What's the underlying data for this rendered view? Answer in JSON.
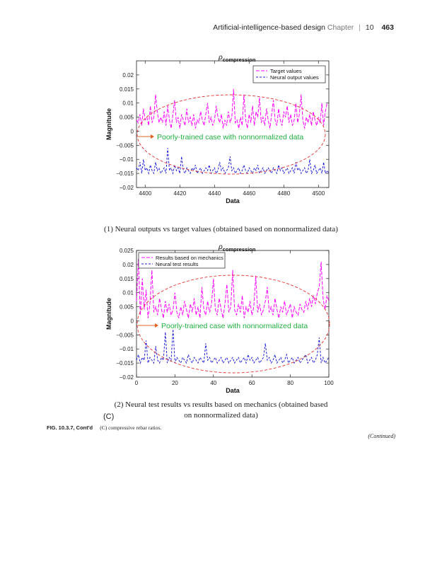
{
  "header": {
    "running_title": "Artificial-intelligence-based design",
    "chapter_label": "Chapter",
    "separator": "|",
    "chapter_number": "10",
    "page_number": "463"
  },
  "colors": {
    "target": "#ff00ff",
    "neural": "#1f1fd6",
    "ellipse": "#e33030",
    "annotation": "#20b040",
    "arrow": "#e36020"
  },
  "chart_data": [
    {
      "type": "line",
      "title_symbol": "ρ",
      "title_subscript": "compression",
      "xlabel": "Data",
      "ylabel": "Magnitude",
      "xlim": [
        4395,
        4506
      ],
      "ylim": [
        -0.02,
        0.025
      ],
      "xticks": [
        4400,
        4420,
        4440,
        4460,
        4480,
        4500
      ],
      "yticks": [
        -0.02,
        -0.015,
        -0.01,
        -0.005,
        0,
        0.005,
        0.01,
        0.015,
        0.02
      ],
      "ytick_labels": [
        "−0.02",
        "−0.015",
        "−0.01",
        "−0.005",
        "0",
        "0.005",
        "0.01",
        "0.015",
        "0.02"
      ],
      "legend": [
        "Target values",
        "Neural output values"
      ],
      "legend_position": "top-right",
      "annotation": "Poorly-trained case with nonnormalized data",
      "series": [
        {
          "name": "Target values",
          "x_start": 4395,
          "x_step": 1,
          "values": [
            0.004,
            0.003,
            0.006,
            0.002,
            0.008,
            0.004,
            0.005,
            0.002,
            0.009,
            0.003,
            0.005,
            0.013,
            0.007,
            0.003,
            0.005,
            0.003,
            0.007,
            0.002,
            0.009,
            0.004,
            0.001,
            0.006,
            0.011,
            0.003,
            0.005,
            0.001,
            0.006,
            0.004,
            0.002,
            0.008,
            0.003,
            0.005,
            0.002,
            0.006,
            0.001,
            0.004,
            0.003,
            0.007,
            0.004,
            0.002,
            0.006,
            0.01,
            0.003,
            0.005,
            0.002,
            0.004,
            0.009,
            0.005,
            0.003,
            0.006,
            0.001,
            0.004,
            0.002,
            0.007,
            0.003,
            0.005,
            0.015,
            0.003,
            0.004,
            0.001,
            0.005,
            0.002,
            0.013,
            0.004,
            0.001,
            0.006,
            0.003,
            0.009,
            0.002,
            0.007,
            0.005,
            0.012,
            0.003,
            0.005,
            0.002,
            0.008,
            0.004,
            0.001,
            0.006,
            0.011,
            0.004,
            0.002,
            0.008,
            0.004,
            0.002,
            0.007,
            0.005,
            0.009,
            0.003,
            0.006,
            0.002,
            0.004,
            0.01,
            0.003,
            0.006,
            0.013,
            0.004,
            0.001,
            0.005,
            0.003,
            0.006,
            0.002,
            0.007,
            0.004,
            0.002,
            0.005,
            0.003,
            0.01,
            0.002,
            0.007,
            0.01
          ]
        },
        {
          "name": "Neural output values",
          "x_start": 4395,
          "x_step": 1,
          "values": [
            -0.013,
            -0.014,
            -0.011,
            -0.015,
            -0.01,
            -0.014,
            -0.013,
            -0.015,
            -0.012,
            -0.014,
            -0.015,
            -0.011,
            -0.014,
            -0.013,
            -0.015,
            -0.014,
            -0.013,
            -0.015,
            -0.006,
            -0.014,
            -0.013,
            -0.015,
            -0.012,
            -0.014,
            -0.013,
            -0.015,
            -0.009,
            -0.014,
            -0.015,
            -0.013,
            -0.014,
            -0.015,
            -0.013,
            -0.014,
            -0.012,
            -0.015,
            -0.014,
            -0.013,
            -0.015,
            -0.014,
            -0.013,
            -0.014,
            -0.012,
            -0.015,
            -0.014,
            -0.013,
            -0.015,
            -0.014,
            -0.011,
            -0.014,
            -0.013,
            -0.015,
            -0.014,
            -0.013,
            -0.009,
            -0.014,
            -0.013,
            -0.015,
            -0.014,
            -0.013,
            -0.015,
            -0.014,
            -0.012,
            -0.014,
            -0.015,
            -0.013,
            -0.014,
            -0.015,
            -0.013,
            -0.014,
            -0.012,
            -0.015,
            -0.014,
            -0.013,
            -0.015,
            -0.014,
            -0.013,
            -0.014,
            -0.015,
            -0.013,
            -0.014,
            -0.015,
            -0.012,
            -0.014,
            -0.013,
            -0.015,
            -0.014,
            -0.013,
            -0.015,
            -0.014,
            -0.013,
            -0.015,
            -0.011,
            -0.014,
            -0.013,
            -0.015,
            -0.014,
            -0.013,
            -0.015,
            -0.014,
            -0.01,
            -0.015,
            -0.014,
            -0.012,
            -0.015,
            -0.014,
            -0.013,
            -0.015,
            -0.011,
            -0.015,
            -0.014,
            -0.015
          ]
        }
      ],
      "caption": "(1) Neural outputs vs target values (obtained based on nonnormalized data)"
    },
    {
      "type": "line",
      "title_symbol": "ρ",
      "title_subscript": "compression",
      "xlabel": "Data",
      "ylabel": "Magnitude",
      "xlim": [
        0,
        100
      ],
      "ylim": [
        -0.02,
        0.025
      ],
      "xticks": [
        0,
        20,
        40,
        60,
        80,
        100
      ],
      "yticks": [
        -0.02,
        -0.015,
        -0.01,
        -0.005,
        0,
        0.005,
        0.01,
        0.015,
        0.02,
        0.025
      ],
      "ytick_labels": [
        "−0.02",
        "−0.015",
        "−0.01",
        "−0.005",
        "0",
        "0.005",
        "0.01",
        "0.015",
        "0.02",
        "0.025"
      ],
      "legend": [
        "Results based on mechanics",
        "Neural test results"
      ],
      "legend_position": "top-left",
      "annotation": "Poorly-trained case with nonnormalized data",
      "series": [
        {
          "name": "Results based on mechanics",
          "x_start": 0,
          "x_step": 1,
          "values": [
            0.007,
            0.022,
            0.002,
            0.015,
            0.004,
            0.011,
            0.001,
            0.006,
            0.018,
            0.003,
            0.005,
            0.002,
            0.008,
            0.004,
            0.001,
            0.007,
            0.003,
            0.006,
            0.002,
            0.004,
            0.01,
            0.003,
            0.001,
            0.005,
            0.002,
            0.007,
            0.004,
            0.001,
            0.006,
            0.003,
            0.008,
            0.002,
            0.005,
            0.001,
            0.012,
            0.004,
            0.002,
            0.007,
            0.003,
            0.006,
            0.015,
            0.004,
            0.002,
            0.008,
            0.004,
            0.001,
            0.006,
            0.013,
            0.003,
            0.005,
            0.018,
            0.004,
            0.002,
            0.006,
            0.003,
            0.009,
            0.001,
            0.005,
            0.003,
            0.007,
            0.002,
            0.005,
            0.016,
            0.003,
            0.006,
            0.002,
            0.004,
            0.007,
            0.012,
            0.003,
            0.005,
            0.002,
            0.008,
            0.004,
            0.001,
            0.005,
            0.003,
            0.007,
            0.002,
            0.004,
            0.006,
            0.001,
            0.005,
            0.003,
            0.002,
            0.006,
            0.004,
            0.003,
            0.007,
            0.004,
            0.008,
            0.005,
            0.009,
            0.006,
            0.01,
            0.012,
            0.021,
            0.008,
            0.004,
            0.009,
            0.007
          ]
        },
        {
          "name": "Neural test results",
          "x_start": 0,
          "x_step": 1,
          "values": [
            -0.014,
            -0.012,
            -0.015,
            -0.013,
            -0.014,
            -0.007,
            -0.015,
            -0.013,
            -0.014,
            -0.015,
            -0.009,
            -0.014,
            -0.015,
            -0.013,
            -0.014,
            -0.004,
            -0.015,
            -0.013,
            -0.014,
            -0.003,
            -0.015,
            -0.013,
            -0.014,
            -0.015,
            -0.013,
            -0.014,
            -0.015,
            -0.012,
            -0.014,
            -0.015,
            -0.013,
            -0.014,
            -0.015,
            -0.013,
            -0.014,
            -0.015,
            -0.008,
            -0.014,
            -0.013,
            -0.015,
            -0.014,
            -0.013,
            -0.015,
            -0.014,
            -0.013,
            -0.015,
            -0.014,
            -0.013,
            -0.015,
            -0.014,
            -0.013,
            -0.015,
            -0.014,
            -0.013,
            -0.015,
            -0.014,
            -0.013,
            -0.015,
            -0.012,
            -0.014,
            -0.013,
            -0.015,
            -0.014,
            -0.013,
            -0.015,
            -0.014,
            -0.013,
            -0.008,
            -0.014,
            -0.013,
            -0.015,
            -0.014,
            -0.012,
            -0.015,
            -0.014,
            -0.013,
            -0.015,
            -0.014,
            -0.012,
            -0.015,
            -0.014,
            -0.013,
            -0.015,
            -0.014,
            -0.013,
            -0.015,
            -0.014,
            -0.013,
            -0.012,
            -0.015,
            -0.014,
            -0.013,
            -0.015,
            -0.014,
            -0.012,
            -0.006,
            -0.015,
            -0.013,
            -0.015,
            -0.014,
            -0.013
          ]
        }
      ],
      "caption_line1": "(2) Neural test results vs results based on mechanics (obtained based",
      "caption_line2": "on nonnormalized data)"
    }
  ],
  "panel_label": "(C)",
  "figure_caption": {
    "label": "FIG. 10.3.7, Cont'd",
    "text": "(C) compressive rebar ratios."
  },
  "continued_label": "(Continued)"
}
